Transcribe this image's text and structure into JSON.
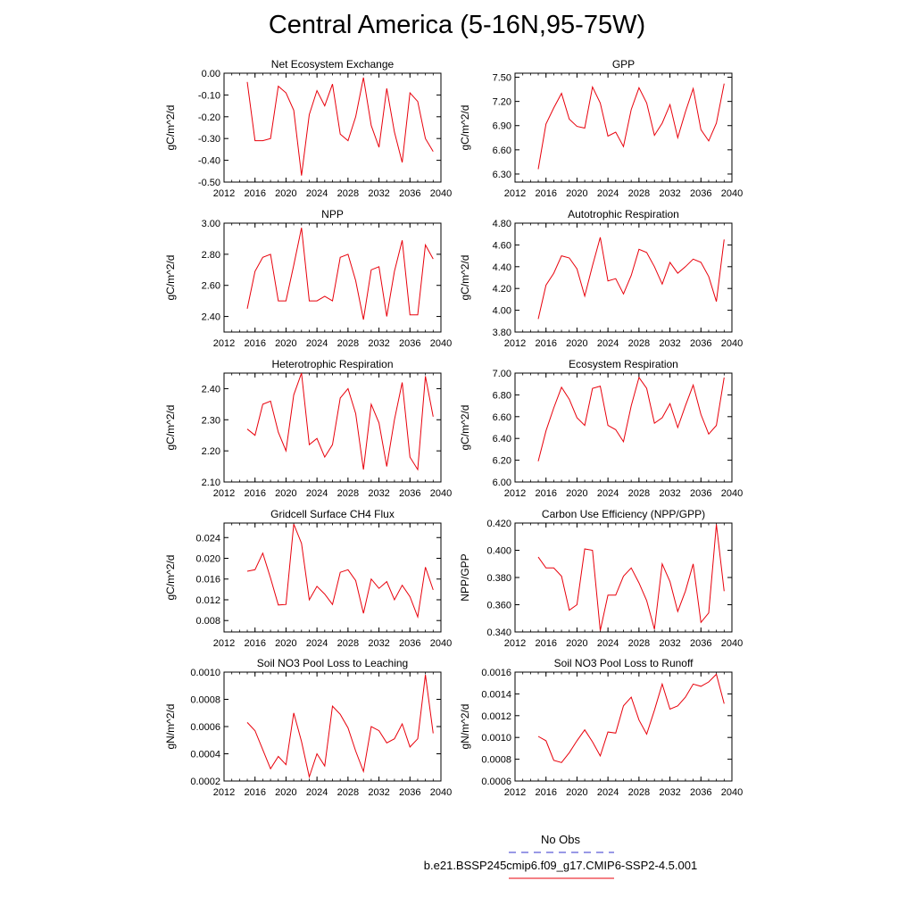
{
  "title": "Central America (5-16N,95-75W)",
  "legend": {
    "obs_label": "No Obs",
    "obs_color": "#3333cc",
    "case_label": "b.e21.BSSP245cmip6.f09_g17.CMIP6-SSP2-4.5.001",
    "case_color": "#e8000b"
  },
  "line_color": "#e8000b",
  "chart_data": [
    {
      "type": "line",
      "title": "Net Ecosystem Exchange",
      "ylabel": "gC/m^2/d",
      "xlim": [
        2012,
        2040
      ],
      "x_ticks": [
        "2012",
        "2016",
        "2020",
        "2024",
        "2028",
        "2032",
        "2036",
        "2040"
      ],
      "ylim": [
        -0.5,
        0.0
      ],
      "y_ticks": [
        "0.00",
        "-0.10",
        "-0.20",
        "-0.30",
        "-0.40",
        "-0.50"
      ],
      "y_tick_values": [
        0.0,
        -0.1,
        -0.2,
        -0.3,
        -0.4,
        -0.5
      ],
      "x": [
        2015,
        2016,
        2017,
        2018,
        2019,
        2020,
        2021,
        2022,
        2023,
        2024,
        2025,
        2026,
        2027,
        2028,
        2029,
        2030,
        2031,
        2032,
        2033,
        2034,
        2035,
        2036,
        2037,
        2038,
        2039
      ],
      "series": [
        {
          "values": [
            -0.04,
            -0.31,
            -0.31,
            -0.3,
            -0.06,
            -0.09,
            -0.17,
            -0.47,
            -0.19,
            -0.08,
            -0.15,
            -0.05,
            -0.28,
            -0.31,
            -0.2,
            -0.02,
            -0.24,
            -0.34,
            -0.07,
            -0.27,
            -0.41,
            -0.09,
            -0.13,
            -0.3,
            -0.36
          ]
        }
      ]
    },
    {
      "type": "line",
      "title": "GPP",
      "ylabel": "gC/m^2/d",
      "xlim": [
        2012,
        2040
      ],
      "x_ticks": [
        "2012",
        "2016",
        "2020",
        "2024",
        "2028",
        "2032",
        "2036",
        "2040"
      ],
      "ylim": [
        6.2,
        7.55
      ],
      "y_ticks": [
        "7.50",
        "7.20",
        "6.90",
        "6.60",
        "6.30"
      ],
      "y_tick_values": [
        7.5,
        7.2,
        6.9,
        6.6,
        6.3
      ],
      "x": [
        2015,
        2016,
        2017,
        2018,
        2019,
        2020,
        2021,
        2022,
        2023,
        2024,
        2025,
        2026,
        2027,
        2028,
        2029,
        2030,
        2031,
        2032,
        2033,
        2034,
        2035,
        2036,
        2037,
        2038,
        2039
      ],
      "series": [
        {
          "values": [
            6.36,
            6.92,
            7.12,
            7.3,
            6.98,
            6.89,
            6.87,
            7.38,
            7.18,
            6.77,
            6.82,
            6.64,
            7.1,
            7.37,
            7.18,
            6.78,
            6.93,
            7.16,
            6.75,
            7.07,
            7.36,
            6.85,
            6.71,
            6.93,
            7.42
          ]
        }
      ]
    },
    {
      "type": "line",
      "title": "NPP",
      "ylabel": "gC/m^2/d",
      "xlim": [
        2012,
        2040
      ],
      "x_ticks": [
        "2012",
        "2016",
        "2020",
        "2024",
        "2028",
        "2032",
        "2036",
        "2040"
      ],
      "ylim": [
        2.3,
        3.0
      ],
      "y_ticks": [
        "3.00",
        "2.80",
        "2.60",
        "2.40"
      ],
      "y_tick_values": [
        3.0,
        2.8,
        2.6,
        2.4
      ],
      "x": [
        2015,
        2016,
        2017,
        2018,
        2019,
        2020,
        2021,
        2022,
        2023,
        2024,
        2025,
        2026,
        2027,
        2028,
        2029,
        2030,
        2031,
        2032,
        2033,
        2034,
        2035,
        2036,
        2037,
        2038,
        2039
      ],
      "series": [
        {
          "values": [
            2.45,
            2.69,
            2.78,
            2.8,
            2.5,
            2.5,
            2.73,
            2.97,
            2.5,
            2.5,
            2.53,
            2.5,
            2.78,
            2.8,
            2.63,
            2.38,
            2.7,
            2.72,
            2.4,
            2.69,
            2.89,
            2.41,
            2.41,
            2.86,
            2.77
          ]
        }
      ]
    },
    {
      "type": "line",
      "title": "Autotrophic Respiration",
      "ylabel": "gC/m^2/d",
      "xlim": [
        2012,
        2040
      ],
      "x_ticks": [
        "2012",
        "2016",
        "2020",
        "2024",
        "2028",
        "2032",
        "2036",
        "2040"
      ],
      "ylim": [
        3.8,
        4.8
      ],
      "y_ticks": [
        "4.80",
        "4.60",
        "4.40",
        "4.20",
        "4.00",
        "3.80"
      ],
      "y_tick_values": [
        4.8,
        4.6,
        4.4,
        4.2,
        4.0,
        3.8
      ],
      "x": [
        2015,
        2016,
        2017,
        2018,
        2019,
        2020,
        2021,
        2022,
        2023,
        2024,
        2025,
        2026,
        2027,
        2028,
        2029,
        2030,
        2031,
        2032,
        2033,
        2034,
        2035,
        2036,
        2037,
        2038,
        2039
      ],
      "series": [
        {
          "values": [
            3.92,
            4.23,
            4.34,
            4.5,
            4.48,
            4.38,
            4.13,
            4.41,
            4.67,
            4.27,
            4.29,
            4.15,
            4.32,
            4.56,
            4.53,
            4.4,
            4.24,
            4.44,
            4.34,
            4.4,
            4.47,
            4.44,
            4.31,
            4.08,
            4.65
          ]
        }
      ]
    },
    {
      "type": "line",
      "title": "Heterotrophic Respiration",
      "ylabel": "gC/m^2/d",
      "xlim": [
        2012,
        2040
      ],
      "x_ticks": [
        "2012",
        "2016",
        "2020",
        "2024",
        "2028",
        "2032",
        "2036",
        "2040"
      ],
      "ylim": [
        2.1,
        2.45
      ],
      "y_ticks": [
        "2.40",
        "2.30",
        "2.20",
        "2.10"
      ],
      "y_tick_values": [
        2.4,
        2.3,
        2.2,
        2.1
      ],
      "x": [
        2015,
        2016,
        2017,
        2018,
        2019,
        2020,
        2021,
        2022,
        2023,
        2024,
        2025,
        2026,
        2027,
        2028,
        2029,
        2030,
        2031,
        2032,
        2033,
        2034,
        2035,
        2036,
        2037,
        2038,
        2039
      ],
      "series": [
        {
          "values": [
            2.27,
            2.25,
            2.35,
            2.36,
            2.26,
            2.2,
            2.38,
            2.45,
            2.22,
            2.24,
            2.18,
            2.22,
            2.37,
            2.4,
            2.32,
            2.14,
            2.35,
            2.29,
            2.15,
            2.3,
            2.42,
            2.18,
            2.14,
            2.44,
            2.31
          ]
        }
      ]
    },
    {
      "type": "line",
      "title": "Ecosystem Respiration",
      "ylabel": "gC/m^2/d",
      "xlim": [
        2012,
        2040
      ],
      "x_ticks": [
        "2012",
        "2016",
        "2020",
        "2024",
        "2028",
        "2032",
        "2036",
        "2040"
      ],
      "ylim": [
        6.0,
        7.0
      ],
      "y_ticks": [
        "7.00",
        "6.80",
        "6.60",
        "6.40",
        "6.20",
        "6.00"
      ],
      "y_tick_values": [
        7.0,
        6.8,
        6.6,
        6.4,
        6.2,
        6.0
      ],
      "x": [
        2015,
        2016,
        2017,
        2018,
        2019,
        2020,
        2021,
        2022,
        2023,
        2024,
        2025,
        2026,
        2027,
        2028,
        2029,
        2030,
        2031,
        2032,
        2033,
        2034,
        2035,
        2036,
        2037,
        2038,
        2039
      ],
      "series": [
        {
          "values": [
            6.19,
            6.47,
            6.68,
            6.87,
            6.76,
            6.59,
            6.52,
            6.86,
            6.88,
            6.52,
            6.48,
            6.37,
            6.7,
            6.96,
            6.86,
            6.54,
            6.59,
            6.72,
            6.5,
            6.7,
            6.89,
            6.62,
            6.44,
            6.52,
            6.96
          ]
        }
      ]
    },
    {
      "type": "line",
      "title": "Gridcell Surface CH4 Flux",
      "ylabel": "gC/m^2/d",
      "xlim": [
        2012,
        2040
      ],
      "x_ticks": [
        "2012",
        "2016",
        "2020",
        "2024",
        "2028",
        "2032",
        "2036",
        "2040"
      ],
      "ylim": [
        0.0058,
        0.0268
      ],
      "y_ticks": [
        "0.024",
        "0.020",
        "0.016",
        "0.012",
        "0.008"
      ],
      "y_tick_values": [
        0.024,
        0.02,
        0.016,
        0.012,
        0.008
      ],
      "x": [
        2015,
        2016,
        2017,
        2018,
        2019,
        2020,
        2021,
        2022,
        2023,
        2024,
        2025,
        2026,
        2027,
        2028,
        2029,
        2030,
        2031,
        2032,
        2033,
        2034,
        2035,
        2036,
        2037,
        2038,
        2039
      ],
      "series": [
        {
          "values": [
            0.0175,
            0.0178,
            0.021,
            0.0162,
            0.011,
            0.0111,
            0.0266,
            0.0229,
            0.012,
            0.0146,
            0.0131,
            0.0111,
            0.0173,
            0.0178,
            0.0157,
            0.0094,
            0.016,
            0.0142,
            0.0155,
            0.012,
            0.0148,
            0.0126,
            0.0087,
            0.0183,
            0.0139
          ]
        }
      ]
    },
    {
      "type": "line",
      "title": "Carbon Use Efficiency (NPP/GPP)",
      "ylabel": "NPP/GPP",
      "xlim": [
        2012,
        2040
      ],
      "x_ticks": [
        "2012",
        "2016",
        "2020",
        "2024",
        "2028",
        "2032",
        "2036",
        "2040"
      ],
      "ylim": [
        0.34,
        0.42
      ],
      "y_ticks": [
        "0.420",
        "0.400",
        "0.380",
        "0.360",
        "0.340"
      ],
      "y_tick_values": [
        0.42,
        0.4,
        0.38,
        0.36,
        0.34
      ],
      "x": [
        2015,
        2016,
        2017,
        2018,
        2019,
        2020,
        2021,
        2022,
        2023,
        2024,
        2025,
        2026,
        2027,
        2028,
        2029,
        2030,
        2031,
        2032,
        2033,
        2034,
        2035,
        2036,
        2037,
        2038,
        2039
      ],
      "series": [
        {
          "values": [
            0.395,
            0.387,
            0.387,
            0.381,
            0.356,
            0.36,
            0.401,
            0.4,
            0.341,
            0.367,
            0.367,
            0.381,
            0.387,
            0.376,
            0.363,
            0.342,
            0.39,
            0.377,
            0.355,
            0.37,
            0.39,
            0.347,
            0.354,
            0.419,
            0.37
          ]
        }
      ]
    },
    {
      "type": "line",
      "title": "Soil NO3 Pool Loss to Leaching",
      "ylabel": "gN/m^2/d",
      "xlim": [
        2012,
        2040
      ],
      "x_ticks": [
        "2012",
        "2016",
        "2020",
        "2024",
        "2028",
        "2032",
        "2036",
        "2040"
      ],
      "ylim": [
        0.0002,
        0.001
      ],
      "y_ticks": [
        "0.0010",
        "0.0008",
        "0.0006",
        "0.0004",
        "0.0002"
      ],
      "y_tick_values": [
        0.001,
        0.0008,
        0.0006,
        0.0004,
        0.0002
      ],
      "x": [
        2015,
        2016,
        2017,
        2018,
        2019,
        2020,
        2021,
        2022,
        2023,
        2024,
        2025,
        2026,
        2027,
        2028,
        2029,
        2030,
        2031,
        2032,
        2033,
        2034,
        2035,
        2036,
        2037,
        2038,
        2039
      ],
      "series": [
        {
          "values": [
            0.00063,
            0.00057,
            0.00043,
            0.00029,
            0.00038,
            0.00032,
            0.0007,
            0.00049,
            0.00023,
            0.0004,
            0.00031,
            0.00075,
            0.00069,
            0.00059,
            0.00042,
            0.00027,
            0.0006,
            0.00057,
            0.00048,
            0.00051,
            0.00062,
            0.00045,
            0.00051,
            0.00098,
            0.00055
          ]
        }
      ]
    },
    {
      "type": "line",
      "title": "Soil NO3 Pool Loss to Runoff",
      "ylabel": "gN/m^2/d",
      "xlim": [
        2012,
        2040
      ],
      "x_ticks": [
        "2012",
        "2016",
        "2020",
        "2024",
        "2028",
        "2032",
        "2036",
        "2040"
      ],
      "ylim": [
        0.0006,
        0.0016
      ],
      "y_ticks": [
        "0.0016",
        "0.0014",
        "0.0012",
        "0.0010",
        "0.0008",
        "0.0006"
      ],
      "y_tick_values": [
        0.0016,
        0.0014,
        0.0012,
        0.001,
        0.0008,
        0.0006
      ],
      "x": [
        2015,
        2016,
        2017,
        2018,
        2019,
        2020,
        2021,
        2022,
        2023,
        2024,
        2025,
        2026,
        2027,
        2028,
        2029,
        2030,
        2031,
        2032,
        2033,
        2034,
        2035,
        2036,
        2037,
        2038,
        2039
      ],
      "series": [
        {
          "values": [
            0.00101,
            0.00097,
            0.00079,
            0.00077,
            0.00086,
            0.00097,
            0.00107,
            0.00096,
            0.00083,
            0.00105,
            0.00104,
            0.00129,
            0.00137,
            0.00116,
            0.00103,
            0.00125,
            0.00149,
            0.00126,
            0.00129,
            0.00137,
            0.00149,
            0.00147,
            0.00151,
            0.00158,
            0.00131
          ]
        }
      ]
    }
  ]
}
